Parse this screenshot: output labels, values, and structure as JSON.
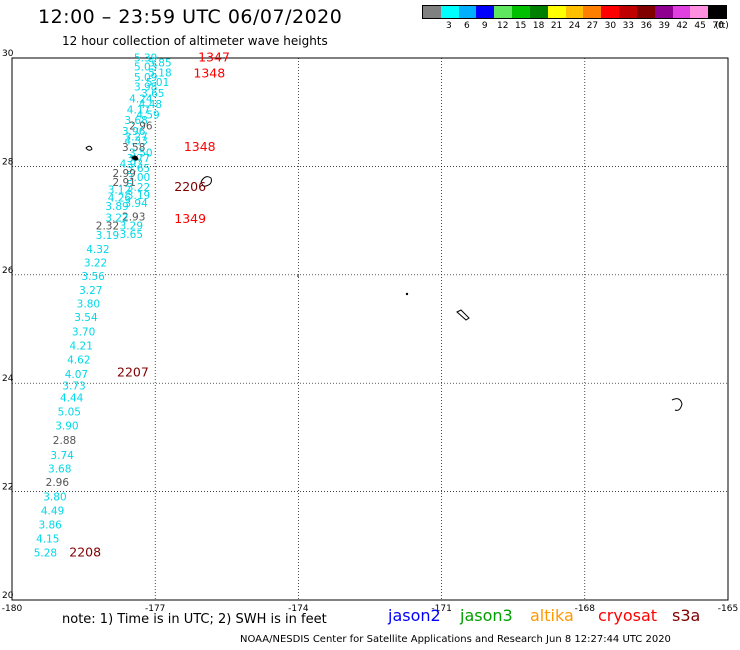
{
  "header": {
    "title": "12:00 – 23:59 UTC 06/07/2020",
    "subtitle": "12 hour collection of altimeter wave heights"
  },
  "legend": {
    "unit_label": "(ft)",
    "bins": [
      {
        "color": "#808080",
        "label": ""
      },
      {
        "color": "#00ffff",
        "label": "3"
      },
      {
        "color": "#00b0ff",
        "label": "6"
      },
      {
        "color": "#0000ff",
        "label": "9"
      },
      {
        "color": "#5fe85f",
        "label": "12"
      },
      {
        "color": "#00c000",
        "label": "15"
      },
      {
        "color": "#008000",
        "label": "18"
      },
      {
        "color": "#ffff00",
        "label": "21"
      },
      {
        "color": "#ffc000",
        "label": "24"
      },
      {
        "color": "#ff8000",
        "label": "27"
      },
      {
        "color": "#ff0000",
        "label": "30"
      },
      {
        "color": "#c00000",
        "label": "33"
      },
      {
        "color": "#800000",
        "label": "36"
      },
      {
        "color": "#900090",
        "label": "39"
      },
      {
        "color": "#e040e0",
        "label": "42"
      },
      {
        "color": "#ff90e0",
        "label": "45"
      },
      {
        "color": "#000000",
        "label": "70"
      }
    ]
  },
  "map": {
    "lon_range": [
      -180,
      -165
    ],
    "lat_range": [
      20,
      30
    ],
    "lon_ticks": [
      "-180",
      "-177",
      "-174",
      "-171",
      "-168",
      "-165"
    ],
    "lat_ticks": [
      "30",
      "28",
      "26",
      "24",
      "22",
      "20"
    ],
    "gridlines": true
  },
  "chart_data": {
    "type": "scatter",
    "description_units": "lon/lat degrees; values are significant wave height in feet",
    "points": [
      {
        "lon": -177.2,
        "lat": 29.94,
        "value": "5.39",
        "color": "cyan"
      },
      {
        "lon": -176.9,
        "lat": 29.84,
        "value": "5.85",
        "color": "cyan"
      },
      {
        "lon": -177.2,
        "lat": 29.77,
        "value": "5.03",
        "color": "cyan"
      },
      {
        "lon": -176.9,
        "lat": 29.66,
        "value": "5.18",
        "color": "cyan"
      },
      {
        "lon": -177.2,
        "lat": 29.58,
        "value": "5.09",
        "color": "cyan"
      },
      {
        "lon": -176.95,
        "lat": 29.48,
        "value": "5.01",
        "color": "cyan"
      },
      {
        "lon": -177.2,
        "lat": 29.4,
        "value": "3.98",
        "color": "cyan"
      },
      {
        "lon": -177.05,
        "lat": 29.28,
        "value": "3.65",
        "color": "cyan"
      },
      {
        "lon": -177.3,
        "lat": 29.18,
        "value": "4.24",
        "color": "cyan"
      },
      {
        "lon": -177.1,
        "lat": 29.08,
        "value": "4.48",
        "color": "cyan"
      },
      {
        "lon": -177.35,
        "lat": 28.98,
        "value": "4.17",
        "color": "cyan"
      },
      {
        "lon": -177.15,
        "lat": 28.88,
        "value": "4.59",
        "color": "cyan"
      },
      {
        "lon": -177.4,
        "lat": 28.78,
        "value": "3.68",
        "color": "cyan"
      },
      {
        "lon": -177.3,
        "lat": 28.68,
        "value": "2.96",
        "color": "gray"
      },
      {
        "lon": -177.45,
        "lat": 28.58,
        "value": "3.96",
        "color": "cyan"
      },
      {
        "lon": -177.4,
        "lat": 28.48,
        "value": "3.27",
        "color": "cyan"
      },
      {
        "lon": -177.4,
        "lat": 28.4,
        "value": "4.33",
        "color": "cyan"
      },
      {
        "lon": -177.45,
        "lat": 28.28,
        "value": "3.58",
        "color": "gray"
      },
      {
        "lon": -177.3,
        "lat": 28.18,
        "value": "3.50",
        "color": "cyan"
      },
      {
        "lon": -177.35,
        "lat": 28.08,
        "value": "3.77",
        "color": "cyan"
      },
      {
        "lon": -177.5,
        "lat": 27.98,
        "value": "4.93",
        "color": "cyan"
      },
      {
        "lon": -177.35,
        "lat": 27.9,
        "value": "3.65",
        "color": "cyan"
      },
      {
        "lon": -177.65,
        "lat": 27.8,
        "value": "2.99",
        "color": "gray"
      },
      {
        "lon": -177.35,
        "lat": 27.73,
        "value": "3.00",
        "color": "cyan"
      },
      {
        "lon": -177.65,
        "lat": 27.64,
        "value": "2.91",
        "color": "gray"
      },
      {
        "lon": -177.35,
        "lat": 27.55,
        "value": "3.22",
        "color": "cyan"
      },
      {
        "lon": -177.75,
        "lat": 27.5,
        "value": "3.12",
        "color": "cyan"
      },
      {
        "lon": -177.35,
        "lat": 27.4,
        "value": "3.19",
        "color": "cyan"
      },
      {
        "lon": -177.75,
        "lat": 27.35,
        "value": "4.26",
        "color": "cyan"
      },
      {
        "lon": -177.4,
        "lat": 27.25,
        "value": "3.94",
        "color": "cyan"
      },
      {
        "lon": -177.8,
        "lat": 27.2,
        "value": "3.89",
        "color": "cyan"
      },
      {
        "lon": -177.45,
        "lat": 27.0,
        "value": "2.93",
        "color": "gray"
      },
      {
        "lon": -177.8,
        "lat": 26.98,
        "value": "3.22",
        "color": "cyan"
      },
      {
        "lon": -178.0,
        "lat": 26.84,
        "value": "2.32",
        "color": "gray"
      },
      {
        "lon": -177.5,
        "lat": 26.84,
        "value": "3.29",
        "color": "cyan"
      },
      {
        "lon": -177.5,
        "lat": 26.68,
        "value": "3.65",
        "color": "cyan"
      },
      {
        "lon": -178.0,
        "lat": 26.66,
        "value": "3.19",
        "color": "cyan"
      },
      {
        "lon": -178.2,
        "lat": 26.4,
        "value": "4.32",
        "color": "cyan"
      },
      {
        "lon": -178.25,
        "lat": 26.15,
        "value": "3.22",
        "color": "cyan"
      },
      {
        "lon": -178.3,
        "lat": 25.9,
        "value": "3.56",
        "color": "cyan"
      },
      {
        "lon": -178.35,
        "lat": 25.65,
        "value": "3.27",
        "color": "cyan"
      },
      {
        "lon": -178.4,
        "lat": 25.4,
        "value": "3.80",
        "color": "cyan"
      },
      {
        "lon": -178.45,
        "lat": 25.15,
        "value": "3.54",
        "color": "cyan"
      },
      {
        "lon": -178.5,
        "lat": 24.88,
        "value": "3.70",
        "color": "cyan"
      },
      {
        "lon": -178.55,
        "lat": 24.62,
        "value": "4.21",
        "color": "cyan"
      },
      {
        "lon": -178.6,
        "lat": 24.36,
        "value": "4.62",
        "color": "cyan"
      },
      {
        "lon": -178.65,
        "lat": 24.1,
        "value": "4.07",
        "color": "cyan"
      },
      {
        "lon": -178.7,
        "lat": 23.88,
        "value": "3.73",
        "color": "cyan"
      },
      {
        "lon": -178.75,
        "lat": 23.66,
        "value": "4.44",
        "color": "cyan"
      },
      {
        "lon": -178.8,
        "lat": 23.4,
        "value": "5.05",
        "color": "cyan"
      },
      {
        "lon": -178.85,
        "lat": 23.15,
        "value": "3.90",
        "color": "cyan"
      },
      {
        "lon": -178.9,
        "lat": 22.88,
        "value": "2.88",
        "color": "gray"
      },
      {
        "lon": -178.95,
        "lat": 22.6,
        "value": "3.74",
        "color": "cyan"
      },
      {
        "lon": -179.0,
        "lat": 22.35,
        "value": "3.68",
        "color": "cyan"
      },
      {
        "lon": -179.05,
        "lat": 22.1,
        "value": "2.96",
        "color": "gray"
      },
      {
        "lon": -179.1,
        "lat": 21.84,
        "value": "3.80",
        "color": "cyan"
      },
      {
        "lon": -179.15,
        "lat": 21.58,
        "value": "4.49",
        "color": "cyan"
      },
      {
        "lon": -179.2,
        "lat": 21.32,
        "value": "3.86",
        "color": "cyan"
      },
      {
        "lon": -179.25,
        "lat": 21.06,
        "value": "4.15",
        "color": "cyan"
      },
      {
        "lon": -179.3,
        "lat": 20.8,
        "value": "5.28",
        "color": "cyan"
      }
    ],
    "time_labels": [
      {
        "lon": -176.1,
        "lat": 29.94,
        "text": "1347",
        "color": "#ff0000"
      },
      {
        "lon": -176.2,
        "lat": 29.64,
        "text": "1348",
        "color": "#ff0000"
      },
      {
        "lon": -176.4,
        "lat": 28.28,
        "text": "1348",
        "color": "#ff0000"
      },
      {
        "lon": -176.6,
        "lat": 27.55,
        "text": "2206",
        "color": "#800000"
      },
      {
        "lon": -176.6,
        "lat": 26.96,
        "text": "1349",
        "color": "#ff0000"
      },
      {
        "lon": -177.8,
        "lat": 24.12,
        "text": "2207",
        "color": "#800000"
      },
      {
        "lon": -178.8,
        "lat": 20.8,
        "text": "2208",
        "color": "#800000"
      }
    ]
  },
  "note": "note:  1) Time is in UTC;  2) SWH is in feet",
  "satellites": [
    {
      "name": "jason2",
      "color": "#0000ff"
    },
    {
      "name": "jason3",
      "color": "#00a000"
    },
    {
      "name": "altika",
      "color": "#ff9900"
    },
    {
      "name": "cryosat",
      "color": "#ff0000"
    },
    {
      "name": "s3a",
      "color": "#800000"
    }
  ],
  "footer": "NOAA/NESDIS Center for Satellite Applications and Research     Jun  8 12:27:44 UTC 2020"
}
